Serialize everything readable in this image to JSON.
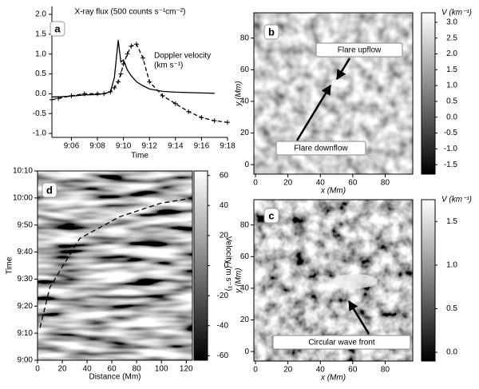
{
  "chart_data": [
    {
      "type": "line",
      "panel_label": "a",
      "xlabel": "Time",
      "x": [
        4.5,
        5,
        6,
        7,
        8,
        8.5,
        9,
        9.3,
        9.6,
        9.8,
        10,
        10.3,
        10.6,
        11,
        11.5,
        12,
        13,
        14,
        15,
        16,
        17,
        18
      ],
      "xlim": [
        4.5,
        18
      ],
      "xticks": [
        {
          "value": 6,
          "label": "9:06"
        },
        {
          "value": 8,
          "label": "9:08"
        },
        {
          "value": 10,
          "label": "9:10"
        },
        {
          "value": 12,
          "label": "9:12"
        },
        {
          "value": 14,
          "label": "9:14"
        },
        {
          "value": 16,
          "label": "9:16"
        },
        {
          "value": 18,
          "label": "9:18"
        }
      ],
      "ylim": [
        -1.1,
        2.2
      ],
      "yticks": [
        {
          "value": -1,
          "label": "-1.0"
        },
        -0.5,
        {
          "value": 0,
          "label": "0.0"
        },
        0.5,
        {
          "value": 1,
          "label": "1.0"
        },
        1.5,
        {
          "value": 2,
          "label": "2.0"
        }
      ],
      "series": [
        {
          "name": "X-ray flux (500 counts s⁻¹cm⁻²)",
          "color": "#000000",
          "style": "solid",
          "values": [
            -0.08,
            -0.08,
            -0.06,
            -0.03,
            -0.02,
            0,
            0.05,
            0.4,
            1.35,
            0.8,
            0.85,
            0.6,
            0.45,
            0.3,
            0.2,
            0.12,
            0.06,
            0.04,
            0.03,
            0.02,
            0.01,
            null
          ]
        },
        {
          "name": "Doppler velocity",
          "unit": "(km s⁻¹)",
          "color": "#000000",
          "style": "dashed",
          "marker": "+",
          "values": [
            -0.15,
            -0.12,
            -0.05,
            0,
            0,
            0,
            0.05,
            0.15,
            0.3,
            0.5,
            0.75,
            1.0,
            1.2,
            1.25,
            0.9,
            0.3,
            -0.05,
            -0.25,
            -0.45,
            -0.6,
            -0.68,
            -0.72
          ]
        }
      ]
    },
    {
      "type": "heatmap",
      "panel_label": "b",
      "xlabel": "x (Mm)",
      "ylabel": "y (Mm)",
      "xlim": [
        -1,
        97
      ],
      "xticks": [
        0,
        20,
        40,
        60,
        80
      ],
      "ylim": [
        -6,
        96
      ],
      "yticks": [
        0,
        20,
        40,
        60,
        80
      ],
      "colorbar": {
        "label": "V (km⁻¹)",
        "lim": [
          -1.8,
          3.3
        ],
        "ticks": [
          {
            "value": 3,
            "label": "3.0"
          },
          2.5,
          {
            "value": 2,
            "label": "2.0"
          },
          1.5,
          {
            "value": 1,
            "label": "1.0"
          },
          0.5,
          {
            "value": 0,
            "label": "0.0"
          },
          -0.5,
          {
            "value": -1,
            "label": "-1.0"
          },
          -1.5
        ]
      },
      "annotations": [
        "Flare upflow",
        "Flare downflow"
      ]
    },
    {
      "type": "heatmap",
      "panel_label": "c",
      "xlabel": "x (Mm)",
      "ylabel": "y (Mm)",
      "xlim": [
        -1,
        97
      ],
      "xticks": [
        0,
        20,
        40,
        60,
        80
      ],
      "ylim": [
        -6,
        96
      ],
      "yticks": [
        0,
        20,
        40,
        60,
        80
      ],
      "colorbar": {
        "label": "V (km⁻¹)",
        "lim": [
          -0.1,
          1.75
        ],
        "ticks": [
          {
            "value": 1.5,
            "label": "1.5"
          },
          {
            "value": 1,
            "label": "1.0"
          },
          {
            "value": 0.5,
            "label": "0.5"
          },
          {
            "value": 0,
            "label": "0.0"
          }
        ]
      },
      "annotations": [
        "Circular wave front"
      ]
    },
    {
      "type": "heatmap",
      "panel_label": "d",
      "xlabel": "Distance (Mm)",
      "ylabel": "Time",
      "xlim": [
        0,
        125
      ],
      "xticks": [
        0,
        20,
        40,
        60,
        80,
        100,
        120
      ],
      "ylim": [
        0,
        70
      ],
      "yticks": [
        {
          "value": 0,
          "label": "9:00"
        },
        {
          "value": 10,
          "label": "9:10"
        },
        {
          "value": 20,
          "label": "9:20"
        },
        {
          "value": 30,
          "label": "9:30"
        },
        {
          "value": 40,
          "label": "9:40"
        },
        {
          "value": 50,
          "label": "9:50"
        },
        {
          "value": 60,
          "label": "10:00"
        },
        {
          "value": 70,
          "label": "10:10"
        }
      ],
      "colorbar": {
        "label": "Velocity (m s⁻¹)",
        "lim": [
          -63,
          63
        ],
        "ticks": [
          60,
          40,
          20,
          0,
          -20,
          -40,
          -60
        ]
      },
      "curve": {
        "x": [
          2,
          10,
          34,
          66,
          99,
          125
        ],
        "y": [
          12,
          27,
          45,
          53,
          58,
          60
        ]
      }
    }
  ]
}
